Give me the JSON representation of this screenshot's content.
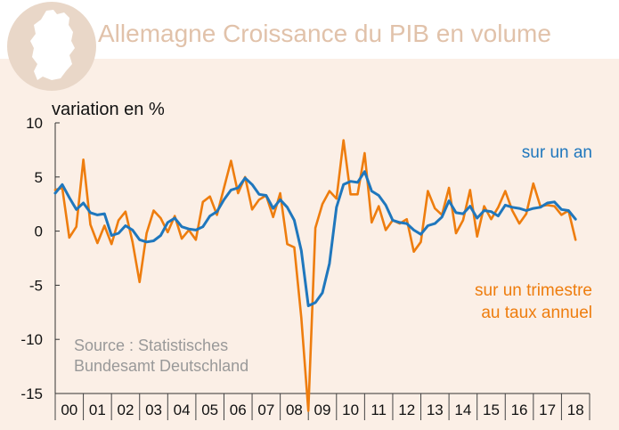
{
  "header": {
    "title": "Allemagne Croissance du PIB en volume",
    "logo_icon": "germany-map-icon"
  },
  "chart_data": {
    "type": "line",
    "title": "Allemagne Croissance du PIB en volume",
    "ylabel": "variation en %",
    "xlabel": "",
    "ylim": [
      -15,
      10
    ],
    "y_ticks": [
      "10",
      "5",
      "0",
      "-5",
      "-10",
      "-15"
    ],
    "y_tick_values": [
      10,
      5,
      0,
      -5,
      -10,
      -15
    ],
    "x_start": 2000,
    "x_end": 2019,
    "x_tick_labels": [
      "00",
      "01",
      "02",
      "03",
      "04",
      "05",
      "06",
      "07",
      "08",
      "09",
      "10",
      "11",
      "12",
      "13",
      "14",
      "15",
      "16",
      "17",
      "18"
    ],
    "grid": false,
    "source": [
      "Source : Statistisches",
      "Bundesamt Deutschland"
    ],
    "series": [
      {
        "name": "sur un an",
        "color": "#1f77bd",
        "x": [
          2000.0,
          2000.25,
          2000.5,
          2000.75,
          2001.0,
          2001.25,
          2001.5,
          2001.75,
          2002.0,
          2002.25,
          2002.5,
          2002.75,
          2003.0,
          2003.25,
          2003.5,
          2003.75,
          2004.0,
          2004.25,
          2004.5,
          2004.75,
          2005.0,
          2005.25,
          2005.5,
          2005.75,
          2006.0,
          2006.25,
          2006.5,
          2006.75,
          2007.0,
          2007.25,
          2007.5,
          2007.75,
          2008.0,
          2008.25,
          2008.5,
          2008.75,
          2009.0,
          2009.25,
          2009.5,
          2009.75,
          2010.0,
          2010.25,
          2010.5,
          2010.75,
          2011.0,
          2011.25,
          2011.5,
          2011.75,
          2012.0,
          2012.25,
          2012.5,
          2012.75,
          2013.0,
          2013.25,
          2013.5,
          2013.75,
          2014.0,
          2014.25,
          2014.5,
          2014.75,
          2015.0,
          2015.25,
          2015.5,
          2015.75,
          2016.0,
          2016.25,
          2016.5,
          2016.75,
          2017.0,
          2017.25,
          2017.5,
          2017.75,
          2018.0,
          2018.25,
          2018.5
        ],
        "values": [
          3.5,
          4.3,
          3.1,
          2.0,
          2.6,
          1.7,
          1.5,
          1.6,
          -0.4,
          -0.2,
          0.5,
          0.1,
          -0.8,
          -1.0,
          -0.9,
          -0.4,
          0.8,
          1.2,
          0.4,
          0.2,
          0.1,
          0.4,
          1.4,
          1.8,
          2.9,
          3.8,
          4.0,
          4.9,
          4.3,
          3.4,
          3.3,
          2.1,
          2.9,
          2.2,
          1.0,
          -1.8,
          -6.9,
          -6.6,
          -5.7,
          -3.0,
          2.2,
          4.3,
          4.6,
          4.5,
          5.5,
          3.7,
          3.3,
          2.4,
          1.0,
          0.8,
          0.7,
          0.1,
          -0.3,
          0.5,
          0.7,
          1.3,
          2.8,
          1.7,
          1.6,
          2.3,
          1.2,
          1.9,
          1.8,
          1.4,
          2.4,
          2.2,
          2.1,
          1.9,
          2.1,
          2.2,
          2.6,
          2.7,
          2.0,
          1.9,
          1.1
        ]
      },
      {
        "name": "sur un trimestre au taux annuel",
        "label_lines": [
          "sur un trimestre",
          "au taux annuel"
        ],
        "color": "#ee7d0e",
        "x": [
          2000.0,
          2000.25,
          2000.5,
          2000.75,
          2001.0,
          2001.25,
          2001.5,
          2001.75,
          2002.0,
          2002.25,
          2002.5,
          2002.75,
          2003.0,
          2003.25,
          2003.5,
          2003.75,
          2004.0,
          2004.25,
          2004.5,
          2004.75,
          2005.0,
          2005.25,
          2005.5,
          2005.75,
          2006.0,
          2006.25,
          2006.5,
          2006.75,
          2007.0,
          2007.25,
          2007.5,
          2007.75,
          2008.0,
          2008.25,
          2008.5,
          2008.75,
          2009.0,
          2009.25,
          2009.5,
          2009.75,
          2010.0,
          2010.25,
          2010.5,
          2010.75,
          2011.0,
          2011.25,
          2011.5,
          2011.75,
          2012.0,
          2012.25,
          2012.5,
          2012.75,
          2013.0,
          2013.25,
          2013.5,
          2013.75,
          2014.0,
          2014.25,
          2014.5,
          2014.75,
          2015.0,
          2015.25,
          2015.5,
          2015.75,
          2016.0,
          2016.25,
          2016.5,
          2016.75,
          2017.0,
          2017.25,
          2017.5,
          2017.75,
          2018.0,
          2018.25,
          2018.5
        ],
        "values": [
          3.8,
          4.0,
          -0.6,
          0.4,
          6.6,
          0.6,
          -1.1,
          0.5,
          -1.2,
          1.0,
          1.8,
          -1.0,
          -4.7,
          -0.2,
          1.9,
          1.2,
          -0.1,
          1.4,
          -0.7,
          0.1,
          -0.8,
          2.7,
          3.2,
          1.5,
          4.0,
          6.5,
          3.5,
          5.0,
          2.0,
          2.9,
          3.3,
          1.3,
          3.5,
          -1.2,
          -1.5,
          -8.0,
          -16.6,
          0.3,
          2.5,
          3.7,
          3.0,
          8.4,
          3.4,
          3.4,
          7.2,
          0.8,
          2.3,
          0.1,
          1.0,
          0.7,
          1.1,
          -1.9,
          -1.0,
          3.7,
          2.1,
          1.5,
          4.0,
          -0.2,
          1.0,
          3.8,
          -0.5,
          2.3,
          1.1,
          2.2,
          3.7,
          1.9,
          0.7,
          1.6,
          4.4,
          2.3,
          2.4,
          2.3,
          1.5,
          1.9,
          -0.8
        ]
      }
    ]
  }
}
